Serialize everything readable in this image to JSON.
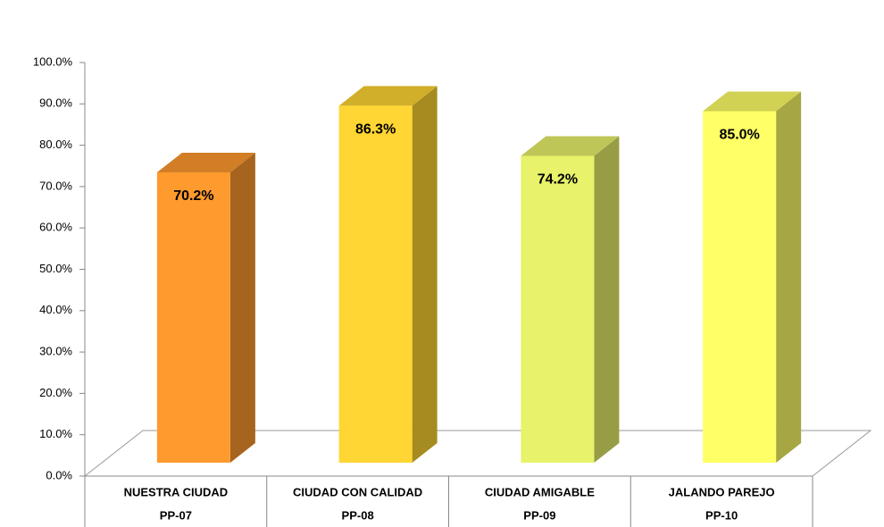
{
  "chart_data": {
    "type": "bar3d",
    "categories": [
      [
        "NUESTRA CIUDAD",
        "PP-07"
      ],
      [
        "CIUDAD CON CALIDAD",
        "PP-08"
      ],
      [
        "CIUDAD AMIGABLE",
        "PP-09"
      ],
      [
        "JALANDO PAREJO",
        "PP-10"
      ]
    ],
    "values": [
      70.2,
      86.3,
      74.2,
      85.0
    ],
    "value_labels": [
      "70.2%",
      "86.3%",
      "74.2%",
      "85.0%"
    ],
    "colors": [
      "#ff9a2e",
      "#ffd633",
      "#e8f26a",
      "#ffff66"
    ],
    "ylim": [
      0,
      100
    ],
    "yticks": [
      {
        "value": 0,
        "label": "0.0%"
      },
      {
        "value": 10,
        "label": "10.0%"
      },
      {
        "value": 20,
        "label": "20.0%"
      },
      {
        "value": 30,
        "label": "30.0%"
      },
      {
        "value": 40,
        "label": "40.0%"
      },
      {
        "value": 50,
        "label": "50.0%"
      },
      {
        "value": 60,
        "label": "60.0%"
      },
      {
        "value": 70,
        "label": "70.0%"
      },
      {
        "value": 80,
        "label": "80.0%"
      },
      {
        "value": 90,
        "label": "90.0%"
      },
      {
        "value": 100,
        "label": "100.0%"
      }
    ]
  }
}
